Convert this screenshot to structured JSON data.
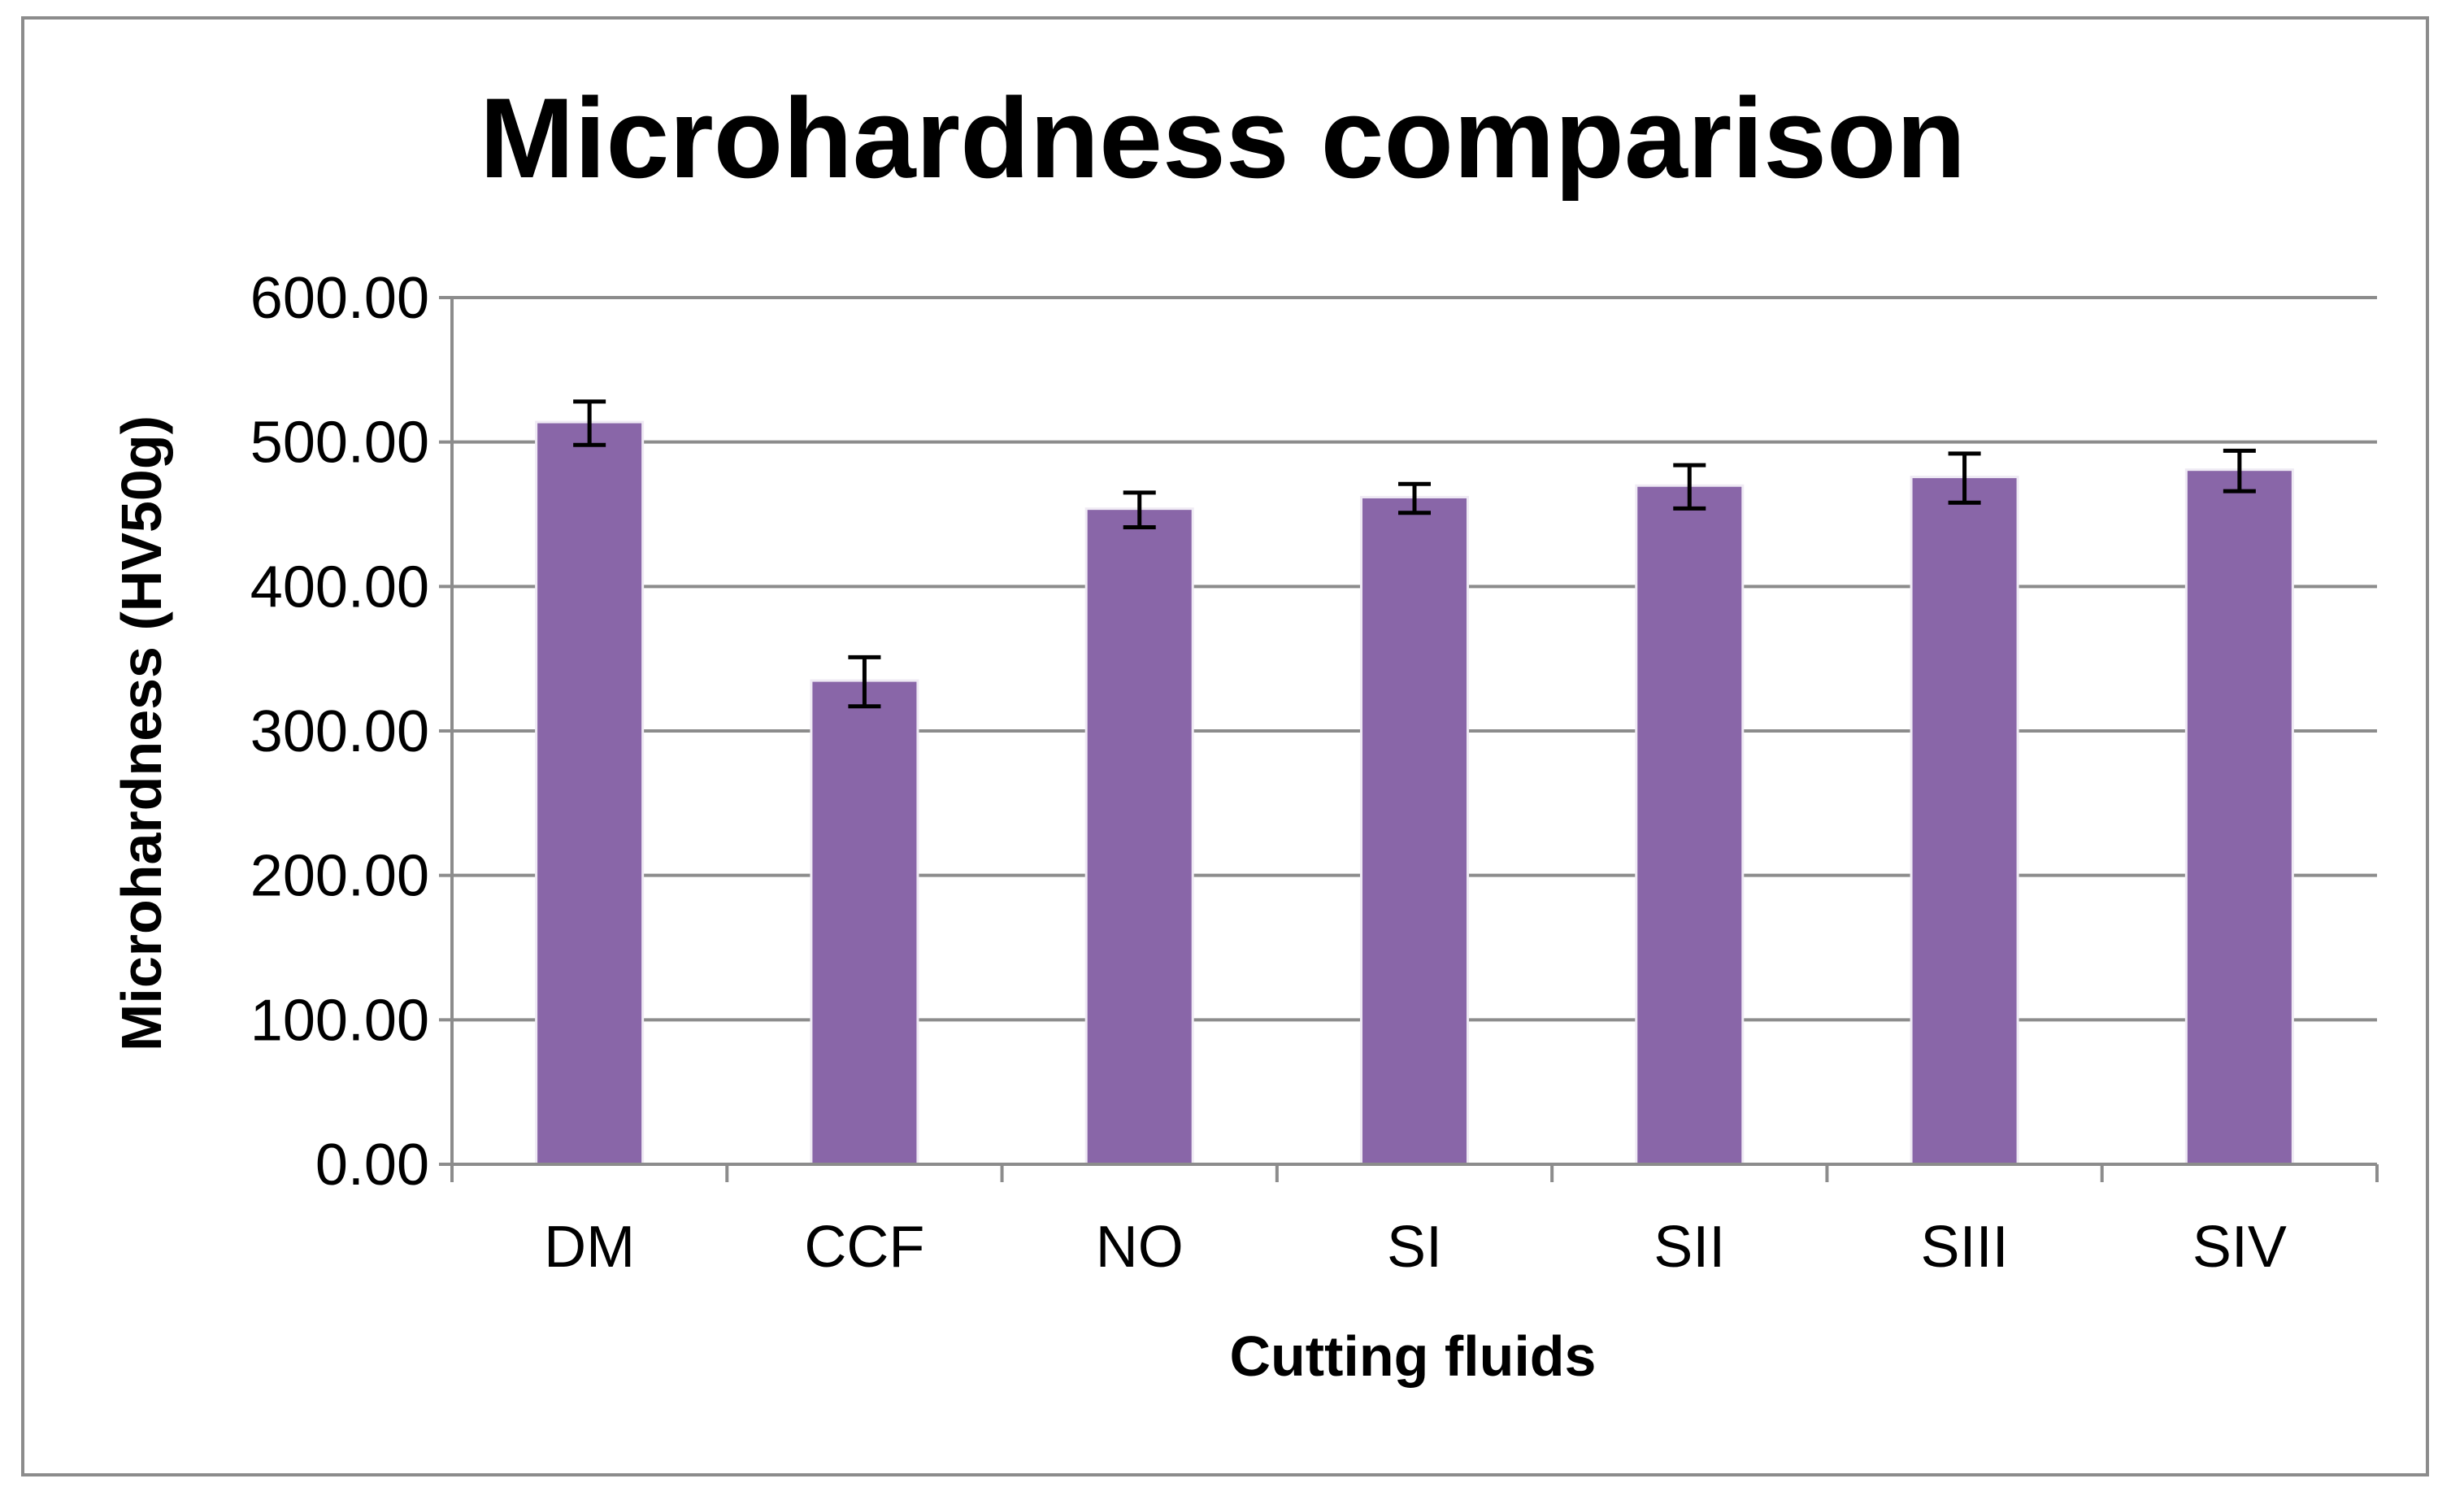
{
  "chart_data": {
    "type": "bar",
    "title": "Microhardness comparison",
    "xlabel": "Cutting fluids",
    "ylabel": "Microhardness (HV50g)",
    "categories": [
      "DM",
      "CCF",
      "NO",
      "SI",
      "SII",
      "SIII",
      "SIV"
    ],
    "series": [
      {
        "name": "Microhardness",
        "values": [
          513,
          334,
          453,
          461,
          469,
          475,
          480
        ],
        "error": [
          15,
          17,
          12,
          10,
          15,
          17,
          14
        ]
      }
    ],
    "ylim": [
      0,
      600
    ],
    "yticks": [
      0,
      100,
      200,
      300,
      400,
      500,
      600
    ],
    "ytick_labels": [
      "0.00",
      "100.00",
      "200.00",
      "300.00",
      "400.00",
      "500.00",
      "600.00"
    ],
    "grid": true,
    "colors": {
      "bar": "#8966a8",
      "grid": "#8c8c8c",
      "axis": "#8c8c8c",
      "error_bar": "#000000"
    }
  }
}
